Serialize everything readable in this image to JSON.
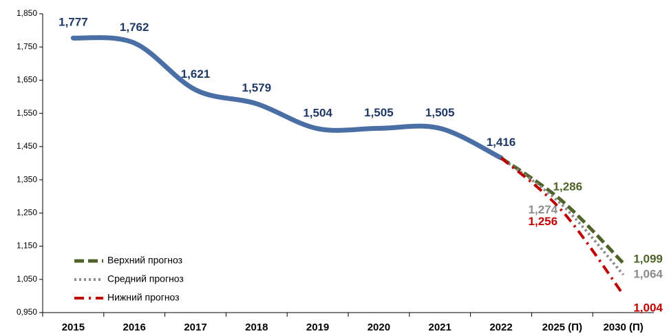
{
  "chart_data": {
    "type": "line",
    "categories": [
      "2015",
      "2016",
      "2017",
      "2018",
      "2019",
      "2020",
      "2021",
      "2022",
      "2025 (П)",
      "2030 (П)"
    ],
    "ylim": [
      0.95,
      1.85
    ],
    "yticks": [
      {
        "value": 0.95,
        "label": "0,950"
      },
      {
        "value": 1.05,
        "label": "1,050"
      },
      {
        "value": 1.15,
        "label": "1,150"
      },
      {
        "value": 1.25,
        "label": "1,250"
      },
      {
        "value": 1.35,
        "label": "1,350"
      },
      {
        "value": 1.45,
        "label": "1,450"
      },
      {
        "value": 1.55,
        "label": "1,550"
      },
      {
        "value": 1.65,
        "label": "1,650"
      },
      {
        "value": 1.75,
        "label": "1,750"
      },
      {
        "value": 1.85,
        "label": "1,850"
      }
    ],
    "legend": "lower left",
    "series": [
      {
        "color": "#4a6fa5",
        "style": "solid",
        "values": [
          1.777,
          1.762,
          1.621,
          1.579,
          1.504,
          1.505,
          1.505,
          1.416,
          null,
          null
        ],
        "value_labels": [
          "1,777",
          "1,762",
          "1,621",
          "1,579",
          "1,504",
          "1,505",
          "1,505",
          "1,416",
          null,
          null
        ]
      },
      {
        "name": "Верхний прогноз",
        "color": "#4f6228",
        "style": "dashed",
        "values": [
          null,
          null,
          null,
          null,
          null,
          null,
          null,
          1.416,
          1.286,
          1.099
        ],
        "value_labels": [
          null,
          null,
          null,
          null,
          null,
          null,
          null,
          null,
          "1,286",
          "1,099"
        ]
      },
      {
        "name": "Средний прогноз",
        "color": "#8c8c8c",
        "style": "dotted",
        "values": [
          null,
          null,
          null,
          null,
          null,
          null,
          null,
          1.416,
          1.274,
          1.064
        ],
        "value_labels": [
          null,
          null,
          null,
          null,
          null,
          null,
          null,
          null,
          "1,274",
          "1,064"
        ]
      },
      {
        "name": "Нижний прогноз",
        "color": "#c00000",
        "style": "dashdot",
        "values": [
          null,
          null,
          null,
          null,
          null,
          null,
          null,
          1.416,
          1.256,
          1.004
        ],
        "value_labels": [
          null,
          null,
          null,
          null,
          null,
          null,
          null,
          null,
          "1,256",
          "1,004"
        ]
      }
    ]
  }
}
